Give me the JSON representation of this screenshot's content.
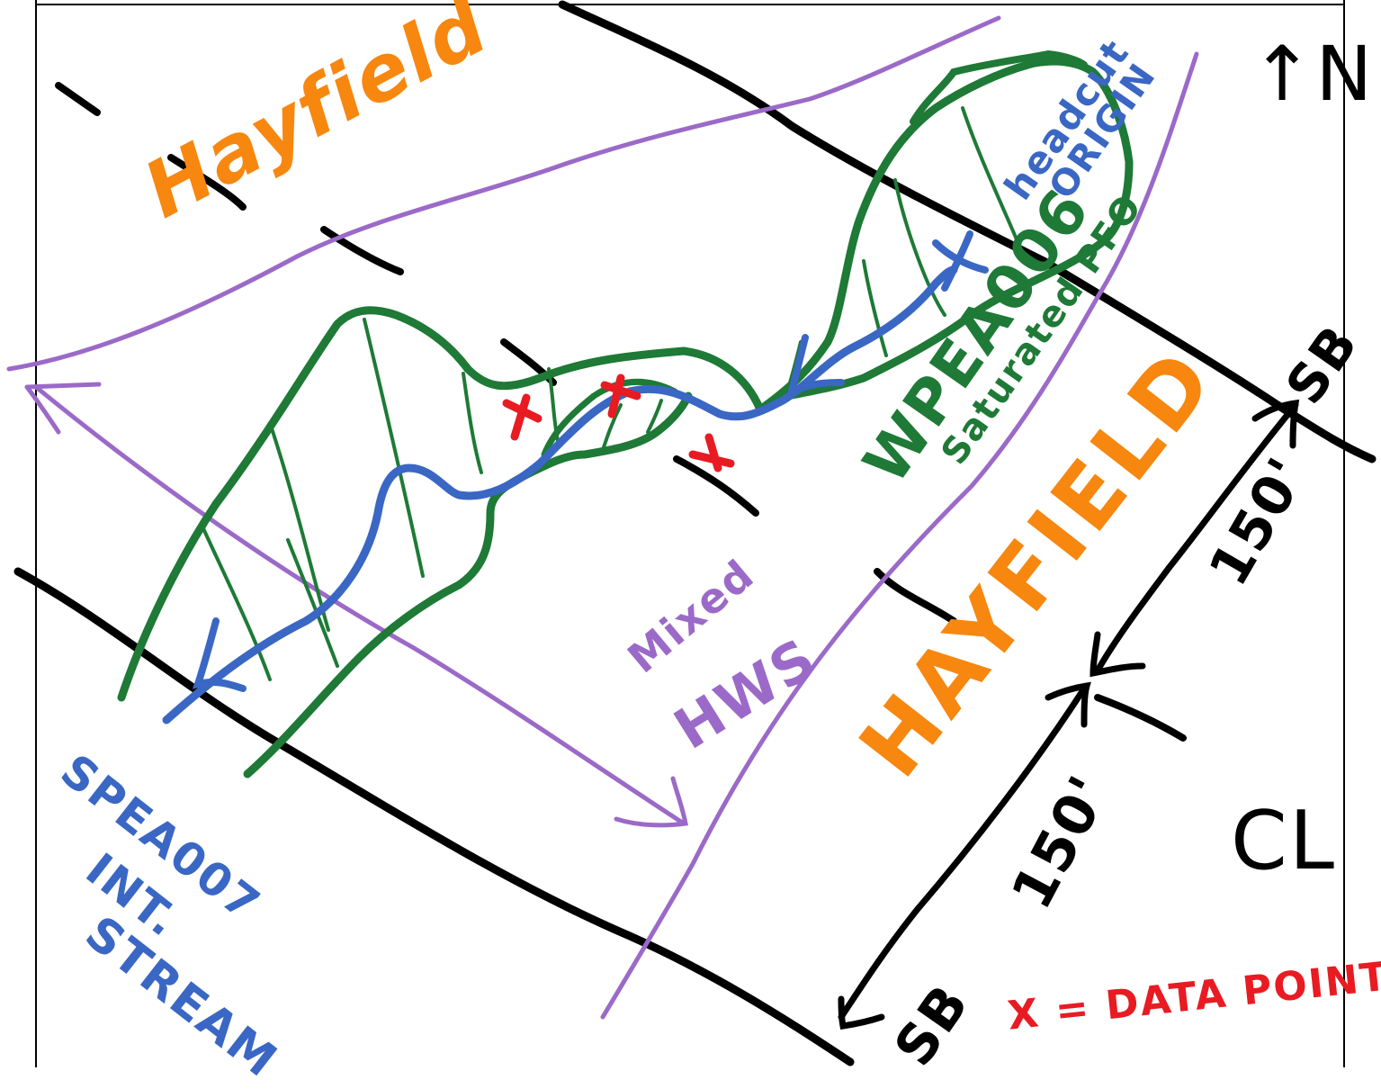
{
  "colors": {
    "black": "#000000",
    "orange": "#f7870f",
    "purple": "#9b6ac8",
    "green": "#1e7a36",
    "blue": "#3a67c3",
    "red": "#e81b23"
  },
  "labels": {
    "hayfield_top": "Hayfield",
    "hayfield_right": "HAYFIELD",
    "mixed": "Mixed",
    "hws": "HWS",
    "wetland_id": "WPEA006",
    "wetland_type": "Saturated PFO",
    "headcut": "headcut",
    "origin": "ORIGIN",
    "stream_id": "SPEA007",
    "stream_int": "INT.",
    "stream_word": "STREAM",
    "dim_upper": "150'",
    "dim_lower": "150'",
    "sb_right": "SB",
    "sb_bottom": "SB",
    "north": "↑N",
    "centerline": "CL",
    "legend": "X = DATA POINT"
  }
}
